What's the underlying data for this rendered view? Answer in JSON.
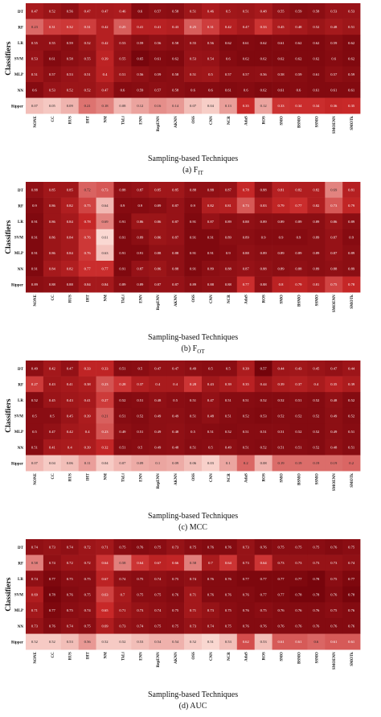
{
  "page": {
    "background": "#ffffff"
  },
  "shared": {
    "rows": [
      "DT",
      "RF",
      "LR",
      "SVM",
      "MLP",
      "NN",
      "Ripper"
    ],
    "cols": [
      "NONE",
      "CC",
      "RUS",
      "IHT",
      "NM",
      "TkLi",
      "ENN",
      "RepENN",
      "AKNN",
      "OSS",
      "CNN",
      "NCR",
      "AdaS",
      "ROS",
      "SMO",
      "BSMO",
      "SSMO",
      "SMOENN",
      "SMOTk"
    ],
    "ylabel": "Classifiers",
    "xlabel": "Sampling-based Techniques",
    "color_low": "#fde3dc",
    "color_high": "#6b0008"
  },
  "chart_data": [
    {
      "type": "heatmap",
      "caption": "(a) F",
      "caption_sub": "IT",
      "ylabel": "Classifiers",
      "xlabel": "Sampling-based Techniques",
      "vmin": 0.0,
      "vmax": 0.7,
      "values": [
        [
          0.47,
          0.52,
          0.56,
          0.47,
          0.47,
          0.46,
          0.6,
          0.57,
          0.58,
          0.51,
          0.46,
          0.5,
          0.51,
          0.48,
          0.55,
          0.59,
          0.58,
          0.53,
          0.53
        ],
        [
          0.23,
          0.31,
          0.32,
          0.31,
          0.42,
          0.25,
          0.41,
          0.41,
          0.43,
          0.25,
          0.31,
          0.42,
          0.47,
          0.33,
          0.45,
          0.48,
          0.52,
          0.48,
          0.51
        ],
        [
          0.55,
          0.55,
          0.59,
          0.52,
          0.42,
          0.53,
          0.59,
          0.56,
          0.58,
          0.55,
          0.56,
          0.62,
          0.61,
          0.62,
          0.61,
          0.62,
          0.62,
          0.59,
          0.62
        ],
        [
          0.53,
          0.61,
          0.58,
          0.55,
          0.39,
          0.55,
          0.65,
          0.61,
          0.62,
          0.53,
          0.54,
          0.6,
          0.62,
          0.62,
          0.62,
          0.62,
          0.62,
          0.6,
          0.62
        ],
        [
          0.51,
          0.57,
          0.53,
          0.51,
          0.4,
          0.51,
          0.56,
          0.59,
          0.58,
          0.51,
          0.5,
          0.57,
          0.57,
          0.56,
          0.58,
          0.59,
          0.61,
          0.57,
          0.59
        ],
        [
          0.6,
          0.53,
          0.52,
          0.52,
          0.47,
          0.6,
          0.59,
          0.57,
          0.58,
          0.6,
          0.6,
          0.61,
          0.6,
          0.62,
          0.61,
          0.6,
          0.61,
          0.61,
          0.61
        ],
        [
          0.07,
          0.05,
          0.09,
          0.21,
          0.18,
          0.08,
          0.12,
          0.16,
          0.14,
          0.07,
          0.04,
          0.13,
          0.35,
          0.12,
          0.33,
          0.34,
          0.34,
          0.36,
          0.35
        ]
      ]
    },
    {
      "type": "heatmap",
      "caption": "(b) F",
      "caption_sub": "OT",
      "ylabel": "Classifiers",
      "xlabel": "Sampling-based Techniques",
      "vmin": 0.6,
      "vmax": 0.95,
      "values": [
        [
          0.88,
          0.85,
          0.85,
          0.72,
          0.73,
          0.88,
          0.87,
          0.85,
          0.85,
          0.88,
          0.88,
          0.87,
          0.78,
          0.88,
          0.81,
          0.82,
          0.82,
          0.69,
          0.81
        ],
        [
          0.9,
          0.86,
          0.82,
          0.75,
          0.64,
          0.9,
          0.9,
          0.89,
          0.87,
          0.9,
          0.82,
          0.81,
          0.73,
          0.83,
          0.79,
          0.77,
          0.82,
          0.73,
          0.79
        ],
        [
          0.91,
          0.86,
          0.84,
          0.78,
          0.69,
          0.91,
          0.86,
          0.86,
          0.87,
          0.91,
          0.87,
          0.89,
          0.88,
          0.89,
          0.89,
          0.89,
          0.89,
          0.86,
          0.89
        ],
        [
          0.91,
          0.86,
          0.84,
          0.76,
          0.61,
          0.91,
          0.89,
          0.86,
          0.87,
          0.91,
          0.91,
          0.89,
          0.89,
          0.9,
          0.9,
          0.9,
          0.89,
          0.87,
          0.9
        ],
        [
          0.91,
          0.86,
          0.84,
          0.76,
          0.63,
          0.91,
          0.91,
          0.88,
          0.88,
          0.91,
          0.91,
          0.9,
          0.88,
          0.89,
          0.89,
          0.89,
          0.89,
          0.87,
          0.89
        ],
        [
          0.91,
          0.84,
          0.82,
          0.77,
          0.77,
          0.91,
          0.87,
          0.86,
          0.88,
          0.91,
          0.89,
          0.88,
          0.87,
          0.88,
          0.89,
          0.88,
          0.89,
          0.88,
          0.89
        ],
        [
          0.89,
          0.88,
          0.88,
          0.84,
          0.84,
          0.89,
          0.89,
          0.87,
          0.87,
          0.89,
          0.88,
          0.88,
          0.77,
          0.88,
          0.8,
          0.79,
          0.81,
          0.75,
          0.78
        ]
      ]
    },
    {
      "type": "heatmap",
      "caption": "(c)  MCC",
      "caption_sub": "",
      "ylabel": "Classifiers",
      "xlabel": "Sampling-based Techniques",
      "vmin": 0.0,
      "vmax": 0.6,
      "values": [
        [
          0.49,
          0.42,
          0.47,
          0.33,
          0.33,
          0.51,
          0.5,
          0.47,
          0.47,
          0.49,
          0.5,
          0.5,
          0.39,
          0.57,
          0.44,
          0.43,
          0.45,
          0.47,
          0.44
        ],
        [
          0.27,
          0.43,
          0.41,
          0.38,
          0.23,
          0.28,
          0.37,
          0.4,
          0.4,
          0.28,
          0.43,
          0.39,
          0.35,
          0.44,
          0.39,
          0.37,
          0.4,
          0.35,
          0.39
        ],
        [
          0.52,
          0.45,
          0.43,
          0.41,
          0.27,
          0.52,
          0.51,
          0.48,
          0.5,
          0.51,
          0.47,
          0.51,
          0.51,
          0.52,
          0.52,
          0.51,
          0.52,
          0.48,
          0.52
        ],
        [
          0.5,
          0.5,
          0.45,
          0.39,
          0.21,
          0.51,
          0.52,
          0.49,
          0.49,
          0.51,
          0.48,
          0.51,
          0.52,
          0.53,
          0.52,
          0.52,
          0.52,
          0.49,
          0.52
        ],
        [
          0.5,
          0.47,
          0.42,
          0.4,
          0.23,
          0.49,
          0.51,
          0.49,
          0.48,
          0.5,
          0.51,
          0.52,
          0.51,
          0.51,
          0.51,
          0.52,
          0.52,
          0.49,
          0.51
        ],
        [
          0.51,
          0.41,
          0.4,
          0.39,
          0.32,
          0.51,
          0.5,
          0.49,
          0.48,
          0.51,
          0.5,
          0.49,
          0.51,
          0.52,
          0.51,
          0.51,
          0.52,
          0.48,
          0.51
        ],
        [
          0.07,
          0.04,
          0.06,
          0.11,
          0.04,
          0.07,
          0.09,
          0.1,
          0.09,
          0.06,
          0.03,
          0.1,
          0.2,
          0.08,
          0.19,
          0.19,
          0.19,
          0.19,
          0.2
        ]
      ]
    },
    {
      "type": "heatmap",
      "caption": "(d)  AUC",
      "caption_sub": "",
      "ylabel": "Classifiers",
      "xlabel": "Sampling-based Techniques",
      "vmin": 0.5,
      "vmax": 0.8,
      "values": [
        [
          0.74,
          0.73,
          0.74,
          0.72,
          0.71,
          0.75,
          0.76,
          0.75,
          0.73,
          0.75,
          0.76,
          0.76,
          0.73,
          0.76,
          0.75,
          0.75,
          0.75,
          0.76,
          0.75
        ],
        [
          0.58,
          0.74,
          0.72,
          0.72,
          0.64,
          0.58,
          0.64,
          0.67,
          0.66,
          0.58,
          0.7,
          0.64,
          0.73,
          0.64,
          0.73,
          0.73,
          0.73,
          0.73,
          0.74
        ],
        [
          0.74,
          0.77,
          0.75,
          0.75,
          0.67,
          0.74,
          0.75,
          0.74,
          0.75,
          0.74,
          0.76,
          0.76,
          0.77,
          0.77,
          0.77,
          0.77,
          0.78,
          0.75,
          0.77
        ],
        [
          0.69,
          0.78,
          0.76,
          0.75,
          0.63,
          0.7,
          0.75,
          0.75,
          0.76,
          0.71,
          0.76,
          0.76,
          0.76,
          0.77,
          0.77,
          0.78,
          0.78,
          0.76,
          0.78
        ],
        [
          0.71,
          0.77,
          0.75,
          0.74,
          0.65,
          0.71,
          0.73,
          0.74,
          0.75,
          0.71,
          0.73,
          0.75,
          0.76,
          0.75,
          0.76,
          0.76,
          0.76,
          0.75,
          0.76
        ],
        [
          0.73,
          0.76,
          0.74,
          0.75,
          0.69,
          0.73,
          0.74,
          0.75,
          0.75,
          0.73,
          0.74,
          0.75,
          0.76,
          0.76,
          0.76,
          0.76,
          0.76,
          0.76,
          0.76
        ],
        [
          0.52,
          0.52,
          0.53,
          0.56,
          0.52,
          0.52,
          0.53,
          0.54,
          0.54,
          0.52,
          0.51,
          0.53,
          0.62,
          0.53,
          0.61,
          0.61,
          0.6,
          0.61,
          0.61
        ]
      ]
    }
  ]
}
